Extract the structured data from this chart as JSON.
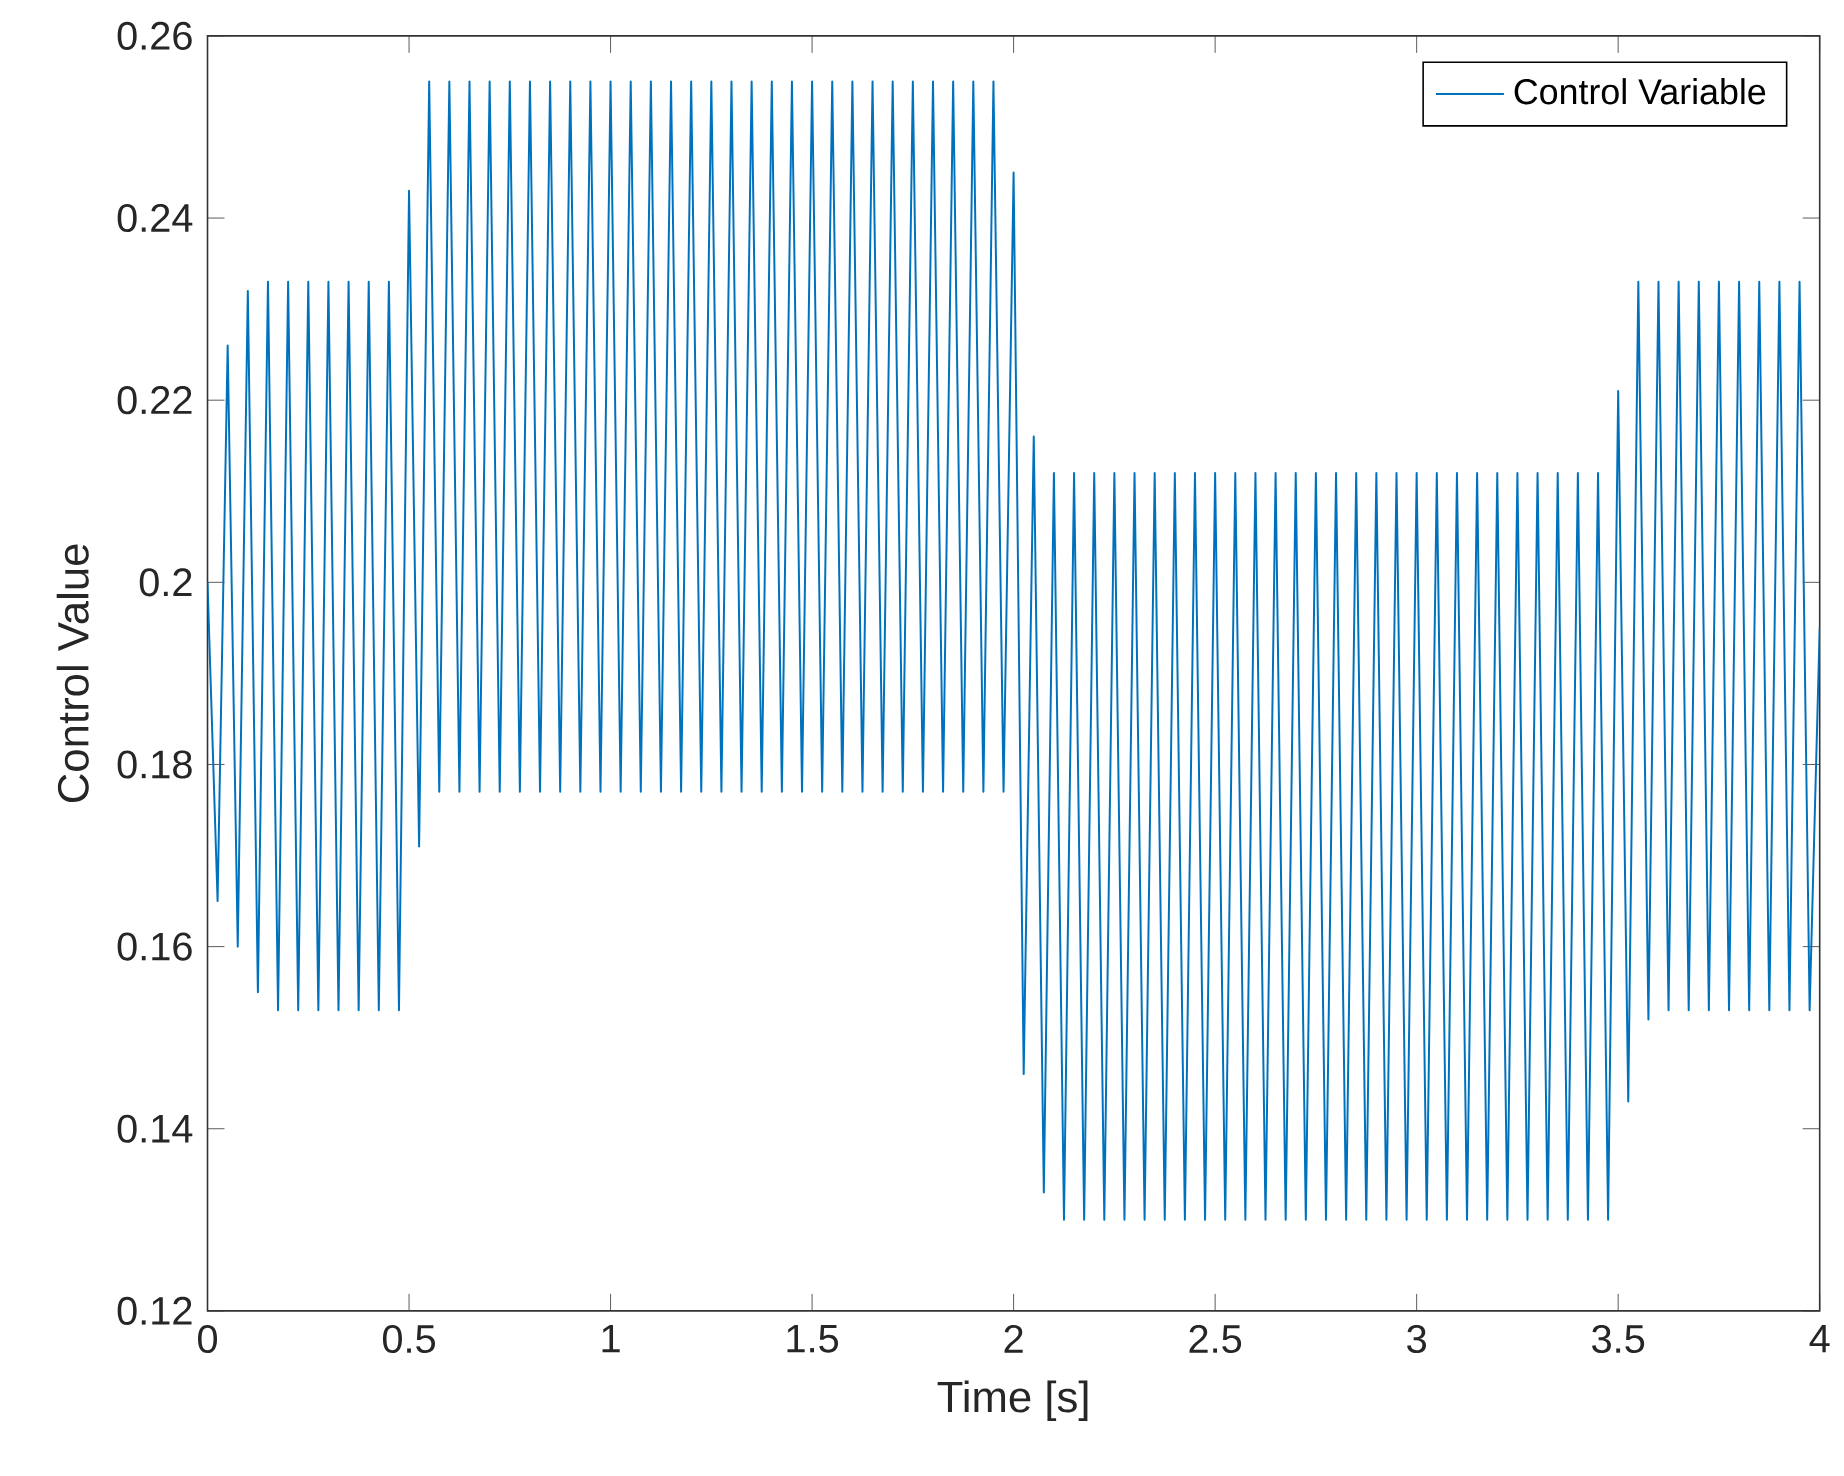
{
  "chart_data": {
    "type": "line",
    "xlabel": "Time [s]",
    "ylabel": "Control Value",
    "legend": "top right",
    "grid": false,
    "marker": "none",
    "line_style": "solid",
    "xlim": [
      0,
      4
    ],
    "ylim": [
      0.12,
      0.26
    ],
    "xticks": [
      0,
      0.5,
      1,
      1.5,
      2,
      2.5,
      3,
      3.5,
      4
    ],
    "yticks": [
      0.12,
      0.14,
      0.16,
      0.18,
      0.2,
      0.22,
      0.24,
      0.26
    ],
    "x": [
      0,
      0.025,
      0.05,
      0.075,
      0.1,
      0.125,
      0.15,
      0.175,
      0.2,
      0.225,
      0.25,
      0.275,
      0.3,
      0.325,
      0.35,
      0.375,
      0.4,
      0.425,
      0.45,
      0.475,
      0.5,
      0.525,
      0.55,
      0.575,
      0.6,
      0.625,
      0.65,
      0.675,
      0.7,
      0.725,
      0.75,
      0.775,
      0.8,
      0.825,
      0.85,
      0.875,
      0.9,
      0.925,
      0.95,
      0.975,
      1,
      1.025,
      1.05,
      1.075,
      1.1,
      1.125,
      1.15,
      1.175,
      1.2,
      1.225,
      1.25,
      1.275,
      1.3,
      1.325,
      1.35,
      1.375,
      1.4,
      1.425,
      1.45,
      1.475,
      1.5,
      1.525,
      1.55,
      1.575,
      1.6,
      1.625,
      1.65,
      1.675,
      1.7,
      1.725,
      1.75,
      1.775,
      1.8,
      1.825,
      1.85,
      1.875,
      1.9,
      1.925,
      1.95,
      1.975,
      2,
      2.025,
      2.05,
      2.075,
      2.1,
      2.125,
      2.15,
      2.175,
      2.2,
      2.225,
      2.25,
      2.275,
      2.3,
      2.325,
      2.35,
      2.375,
      2.4,
      2.425,
      2.45,
      2.475,
      2.5,
      2.525,
      2.55,
      2.575,
      2.6,
      2.625,
      2.65,
      2.675,
      2.7,
      2.725,
      2.75,
      2.775,
      2.8,
      2.825,
      2.85,
      2.875,
      2.9,
      2.925,
      2.95,
      2.975,
      3,
      3.025,
      3.05,
      3.075,
      3.1,
      3.125,
      3.15,
      3.175,
      3.2,
      3.225,
      3.25,
      3.275,
      3.3,
      3.325,
      3.35,
      3.375,
      3.4,
      3.425,
      3.45,
      3.475,
      3.5,
      3.525,
      3.55,
      3.575,
      3.6,
      3.625,
      3.65,
      3.675,
      3.7,
      3.725,
      3.75,
      3.775,
      3.8,
      3.825,
      3.85,
      3.875,
      3.9,
      3.925,
      3.95,
      3.975,
      4
    ],
    "series": [
      {
        "name": "Control Variable",
        "color": "#0072bd",
        "values": [
          0.2,
          0.165,
          0.226,
          0.16,
          0.232,
          0.155,
          0.233,
          0.153,
          0.233,
          0.153,
          0.233,
          0.153,
          0.233,
          0.153,
          0.233,
          0.153,
          0.233,
          0.153,
          0.233,
          0.153,
          0.243,
          0.171,
          0.255,
          0.177,
          0.255,
          0.177,
          0.255,
          0.177,
          0.255,
          0.177,
          0.255,
          0.177,
          0.255,
          0.177,
          0.255,
          0.177,
          0.255,
          0.177,
          0.255,
          0.177,
          0.255,
          0.177,
          0.255,
          0.177,
          0.255,
          0.177,
          0.255,
          0.177,
          0.255,
          0.177,
          0.255,
          0.177,
          0.255,
          0.177,
          0.255,
          0.177,
          0.255,
          0.177,
          0.255,
          0.177,
          0.255,
          0.177,
          0.255,
          0.177,
          0.255,
          0.177,
          0.255,
          0.177,
          0.255,
          0.177,
          0.255,
          0.177,
          0.255,
          0.177,
          0.255,
          0.177,
          0.255,
          0.177,
          0.255,
          0.177,
          0.245,
          0.146,
          0.216,
          0.133,
          0.212,
          0.13,
          0.212,
          0.13,
          0.212,
          0.13,
          0.212,
          0.13,
          0.212,
          0.13,
          0.212,
          0.13,
          0.212,
          0.13,
          0.212,
          0.13,
          0.212,
          0.13,
          0.212,
          0.13,
          0.212,
          0.13,
          0.212,
          0.13,
          0.212,
          0.13,
          0.212,
          0.13,
          0.212,
          0.13,
          0.212,
          0.13,
          0.212,
          0.13,
          0.212,
          0.13,
          0.212,
          0.13,
          0.212,
          0.13,
          0.212,
          0.13,
          0.212,
          0.13,
          0.212,
          0.13,
          0.212,
          0.13,
          0.212,
          0.13,
          0.212,
          0.13,
          0.212,
          0.13,
          0.212,
          0.13,
          0.221,
          0.143,
          0.233,
          0.152,
          0.233,
          0.153,
          0.233,
          0.153,
          0.233,
          0.153,
          0.233,
          0.153,
          0.233,
          0.153,
          0.233,
          0.153,
          0.233,
          0.153,
          0.233,
          0.153,
          0.195
        ]
      }
    ]
  }
}
